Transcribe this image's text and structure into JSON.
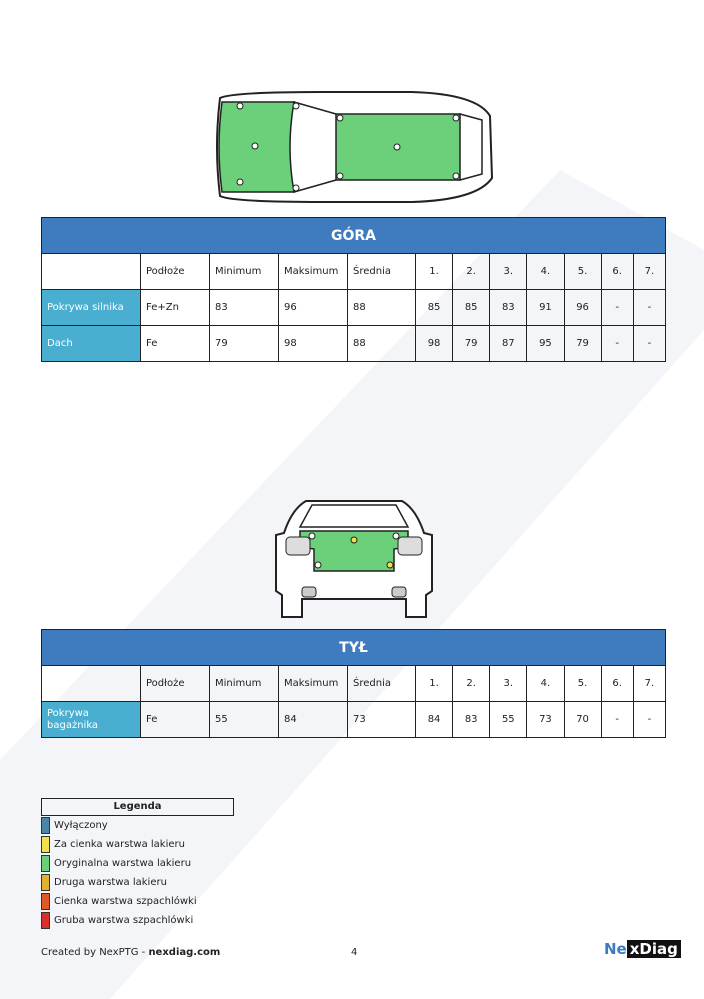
{
  "tables": [
    {
      "title": "GÓRA",
      "headers": [
        "",
        "Podłoże",
        "Minimum",
        "Maksimum",
        "Średnia",
        "1.",
        "2.",
        "3.",
        "4.",
        "5.",
        "6.",
        "7."
      ],
      "rows": [
        [
          "Pokrywa silnika",
          "Fe+Zn",
          "83",
          "96",
          "88",
          "85",
          "85",
          "83",
          "91",
          "96",
          "-",
          "-"
        ],
        [
          "Dach",
          "Fe",
          "79",
          "98",
          "88",
          "98",
          "79",
          "87",
          "95",
          "79",
          "-",
          "-"
        ]
      ]
    },
    {
      "title": "TYŁ",
      "headers": [
        "",
        "Podłoże",
        "Minimum",
        "Maksimum",
        "Średnia",
        "1.",
        "2.",
        "3.",
        "4.",
        "5.",
        "6.",
        "7."
      ],
      "rows": [
        [
          "Pokrywa bagażnika",
          "Fe",
          "55",
          "84",
          "73",
          "84",
          "83",
          "55",
          "73",
          "70",
          "-",
          "-"
        ]
      ]
    }
  ],
  "legend": {
    "title": "Legenda",
    "items": [
      {
        "label": "Wyłączony",
        "color": "#4a86a8"
      },
      {
        "label": "Za cienka warstwa lakieru",
        "color": "#f0e24a"
      },
      {
        "label": "Oryginalna warstwa lakieru",
        "color": "#6ccf7a"
      },
      {
        "label": "Druga warstwa lakieru",
        "color": "#e0b030"
      },
      {
        "label": "Cienka warstwa szpachlówki",
        "color": "#e0582a"
      },
      {
        "label": "Gruba warstwa szpachlówki",
        "color": "#d8302a"
      }
    ]
  },
  "footer": {
    "created": "Created by NexPTG - ",
    "site": "nexdiag.com",
    "page": "4",
    "logo_a": "Ne",
    "logo_b": "xDiag"
  },
  "car_points": {
    "top_hood": [
      "1",
      "2",
      "3",
      "4",
      "5"
    ],
    "top_roof": [
      "1",
      "2",
      "3",
      "4",
      "5"
    ],
    "rear": [
      "1",
      "2",
      "3",
      "4",
      "5"
    ]
  }
}
